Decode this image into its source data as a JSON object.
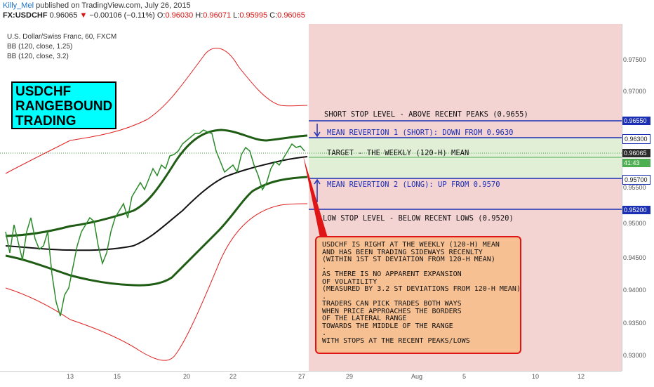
{
  "header": {
    "user": "Killy_Mel",
    "published": "published on TradingView.com, July 26, 2015",
    "symbol": "FX:USDCHF",
    "last": "0.96065",
    "arrow": "▼",
    "change": "−0.00106 (−0.11%)",
    "o_label": "O:",
    "o_value": "0.96030",
    "h_label": "H:",
    "h_value": "0.96071",
    "l_label": "L:",
    "l_value": "0.95995",
    "c_label": "C:",
    "c_value": "0.96065"
  },
  "legend": {
    "title": "U.S. Dollar/Swiss Franc, 60, FXCM",
    "bb1": "BB (120, close, 1.25)",
    "bb2": "BB (120, close, 3.2)"
  },
  "rangebox": {
    "line1": "USDCHF",
    "line2": "RANGEBOUND",
    "line3": "TRADING"
  },
  "annotations": {
    "short_stop": "SHORT STOP LEVEL - ABOVE RECENT PEAKS (0.9655)",
    "mean_rev1": "MEAN REVERTION 1 (SHORT): DOWN FROM 0.9630",
    "target": "TARGET - THE WEEKLY (120-H) MEAN",
    "mean_rev2": "MEAN REVERTION 2 (LONG): UP FROM 0.9570",
    "low_stop": "LOW STOP LEVEL - BELOW RECENT LOWS (0.9520)"
  },
  "note": {
    "l1": "USDCHF IS RIGHT AT THE WEEKLY (120-H) MEAN",
    "l2": "AND HAS BEEN TRADING SIDEWAYS RECENLTY",
    "l3": "(WITHIN 1ST ST DEVIATION FROM 120-H MEAN)",
    "l4": ".",
    "l5": "AS THERE IS NO APPARENT EXPANSION",
    "l6": "OF VOLATILITY",
    "l7": "(MEASURED BY 3.2 ST DEVIATIONS FROM 120-H MEAN)",
    "l8": ".",
    "l9": "TRADERS CAN PICK TRADES BOTH WAYS",
    "l10": "WHEN PRICE APPROACHES THE BORDERS",
    "l11": "OF THE LATERAL RANGE",
    "l12": "TOWARDS THE MIDDLE OF THE RANGE",
    "l13": ".",
    "l14": "WITH STOPS AT THE RECENT PEAKS/LOWS"
  },
  "price_axis": {
    "ticks": [
      "0.97500",
      "0.97000",
      "0.96500",
      "0.96000",
      "0.95500",
      "0.95000",
      "0.94500",
      "0.94000",
      "0.93500",
      "0.93000"
    ],
    "tag_9655": "0.96550",
    "tag_9630": "0.96300",
    "tag_current": "0.96065",
    "tag_countdown": "41:43",
    "tag_9570": "0.95700",
    "tag_9520": "0.95200"
  },
  "time_axis": {
    "labels": [
      "13",
      "15",
      "20",
      "22",
      "27",
      "29",
      "Aug",
      "5",
      "10",
      "12"
    ]
  },
  "colors": {
    "bb_outer": "#e02020",
    "bb_inner": "#1f5c14",
    "mean": "#111111",
    "level_line": "#1b2fb5",
    "future_zone": "#f4d3d3",
    "target_zone": "#e1efd6",
    "rangebox": "#00ffff",
    "note_bg": "#f7c093"
  }
}
